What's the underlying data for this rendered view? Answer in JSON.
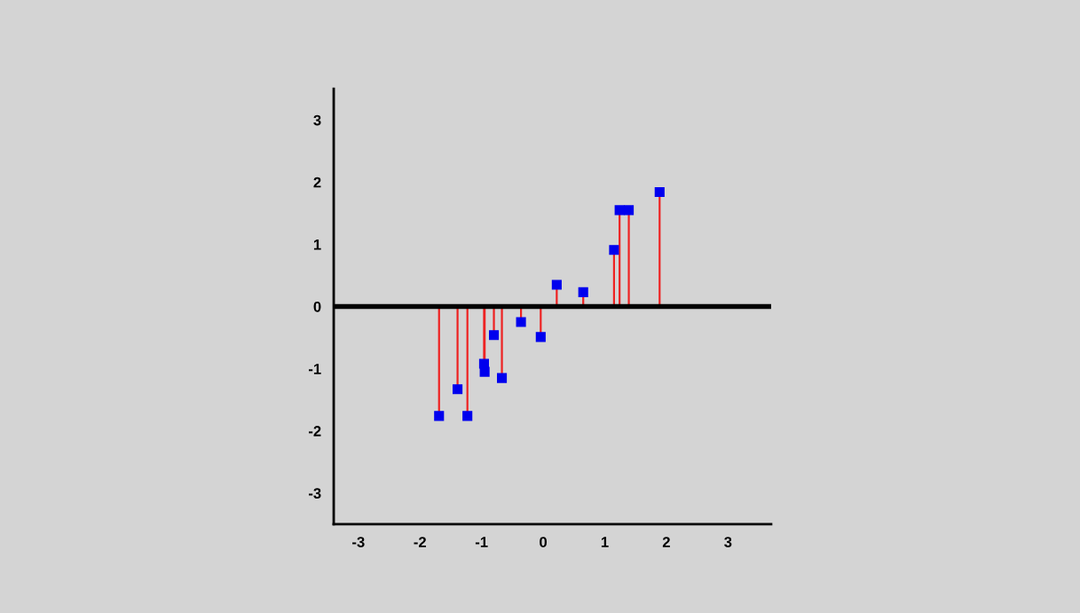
{
  "chart_data": {
    "type": "lollipop",
    "x": [
      -1.69,
      -1.39,
      -1.23,
      -0.96,
      -0.95,
      -0.8,
      -0.67,
      -0.36,
      -0.04,
      0.22,
      0.65,
      1.15,
      1.24,
      1.39,
      1.89
    ],
    "series": [
      {
        "color": "#0000ee",
        "values": [
          -1.76,
          -1.33,
          -1.76,
          -0.92,
          -1.05,
          -0.46,
          -1.15,
          -0.25,
          -0.49,
          0.35,
          0.23,
          0.91,
          1.55,
          1.55,
          1.84
        ]
      }
    ],
    "marker": "square",
    "xlim": [
      -3.4,
      3.7
    ],
    "ylim": [
      -3.5,
      3.5
    ],
    "xticks": [
      -3,
      -2,
      -1,
      0,
      1,
      2,
      3
    ],
    "yticks": [
      -3,
      -2,
      -1,
      0,
      1,
      2,
      3
    ],
    "ref_lines": [
      {
        "axis": "y",
        "value": 0,
        "label": null,
        "color": "#000000"
      }
    ],
    "grid": false,
    "legend": false
  }
}
